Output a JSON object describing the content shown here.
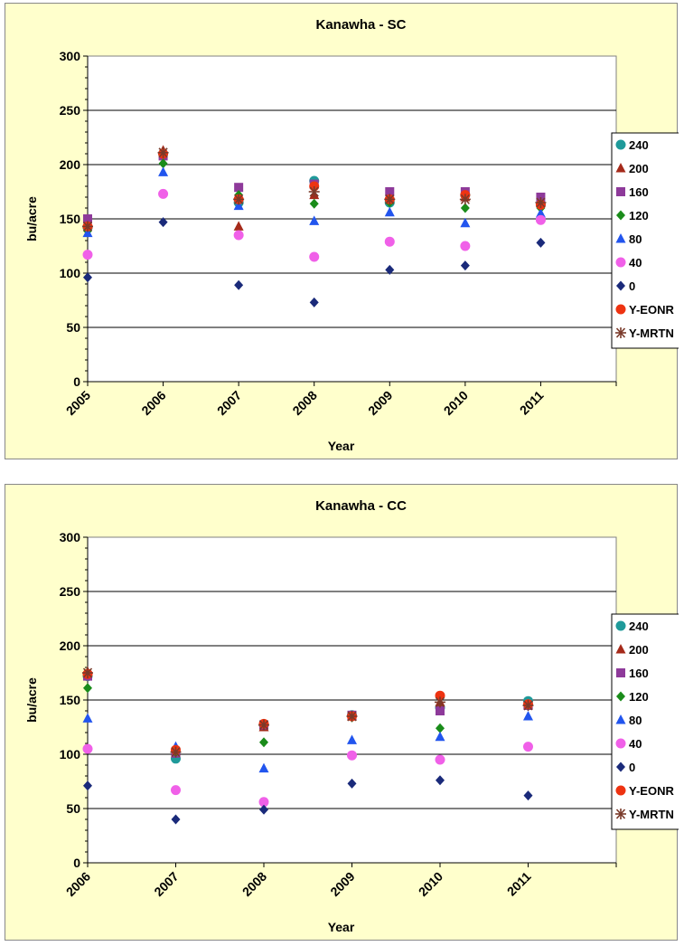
{
  "legend_entries": [
    {
      "label": "240",
      "color": "#1f9a9a",
      "marker": "circle"
    },
    {
      "label": "200",
      "color": "#a52a1a",
      "marker": "triangle"
    },
    {
      "label": "160",
      "color": "#8e3a9a",
      "marker": "square"
    },
    {
      "label": "120",
      "color": "#1a8c1a",
      "marker": "diamond"
    },
    {
      "label": "80",
      "color": "#2255ee",
      "marker": "triangle"
    },
    {
      "label": "40",
      "color": "#f060e8",
      "marker": "circle"
    },
    {
      "label": "0",
      "color": "#1a2a7a",
      "marker": "diamond"
    },
    {
      "label": "Y-EONR",
      "color": "#ee3311",
      "marker": "circle"
    },
    {
      "label": "Y-MRTN",
      "color": "#7a3a2a",
      "marker": "star"
    }
  ],
  "chart_data": [
    {
      "type": "scatter",
      "title": "Kanawha - SC",
      "xlabel": "Year",
      "ylabel": "bu/acre",
      "categories": [
        "2005",
        "2006",
        "2007",
        "2008",
        "2009",
        "2010",
        "2011"
      ],
      "ylim": [
        0,
        300
      ],
      "yticks": [
        "0",
        "50",
        "100",
        "150",
        "200",
        "250",
        "300"
      ],
      "grid": true,
      "legend_position": "right",
      "series": [
        {
          "name": "240",
          "values": [
            142,
            210,
            165,
            185,
            165,
            172,
            163
          ]
        },
        {
          "name": "200",
          "values": [
            145,
            213,
            143,
            172,
            170,
            170,
            165
          ]
        },
        {
          "name": "160",
          "values": [
            150,
            208,
            179,
            182,
            175,
            175,
            170
          ]
        },
        {
          "name": "120",
          "values": [
            139,
            201,
            172,
            164,
            165,
            160,
            160
          ]
        },
        {
          "name": "80",
          "values": [
            137,
            193,
            162,
            148,
            156,
            146,
            155
          ]
        },
        {
          "name": "40",
          "values": [
            117,
            173,
            135,
            115,
            129,
            125,
            149
          ]
        },
        {
          "name": "0",
          "values": [
            96,
            147,
            89,
            73,
            103,
            107,
            128
          ]
        },
        {
          "name": "Y-EONR",
          "values": [
            143,
            210,
            168,
            180,
            168,
            172,
            163
          ]
        },
        {
          "name": "Y-MRTN",
          "values": [
            143,
            211,
            168,
            175,
            168,
            168,
            165
          ]
        }
      ]
    },
    {
      "type": "scatter",
      "title": "Kanawha - CC",
      "xlabel": "Year",
      "ylabel": "bu/acre",
      "categories": [
        "2006",
        "2007",
        "2008",
        "2009",
        "2010",
        "2011"
      ],
      "ylim": [
        0,
        300
      ],
      "yticks": [
        "0",
        "50",
        "100",
        "150",
        "200",
        "250",
        "300"
      ],
      "grid": true,
      "legend_position": "right",
      "series": [
        {
          "name": "240",
          "values": [
            172,
            96,
            127,
            136,
            143,
            149
          ]
        },
        {
          "name": "200",
          "values": [
            176,
            103,
            125,
            135,
            148,
            146
          ]
        },
        {
          "name": "160",
          "values": [
            172,
            101,
            127,
            136,
            140,
            145
          ]
        },
        {
          "name": "120",
          "values": [
            161,
            102,
            111,
            134,
            124,
            145
          ]
        },
        {
          "name": "80",
          "values": [
            133,
            107,
            87,
            113,
            116,
            135
          ]
        },
        {
          "name": "40",
          "values": [
            105,
            67,
            56,
            99,
            95,
            107
          ]
        },
        {
          "name": "0",
          "values": [
            71,
            40,
            49,
            73,
            76,
            62
          ]
        },
        {
          "name": "Y-EONR",
          "values": [
            174,
            104,
            128,
            135,
            154,
            146
          ]
        },
        {
          "name": "Y-MRTN",
          "values": [
            175,
            102,
            127,
            135,
            148,
            145
          ]
        }
      ]
    }
  ]
}
